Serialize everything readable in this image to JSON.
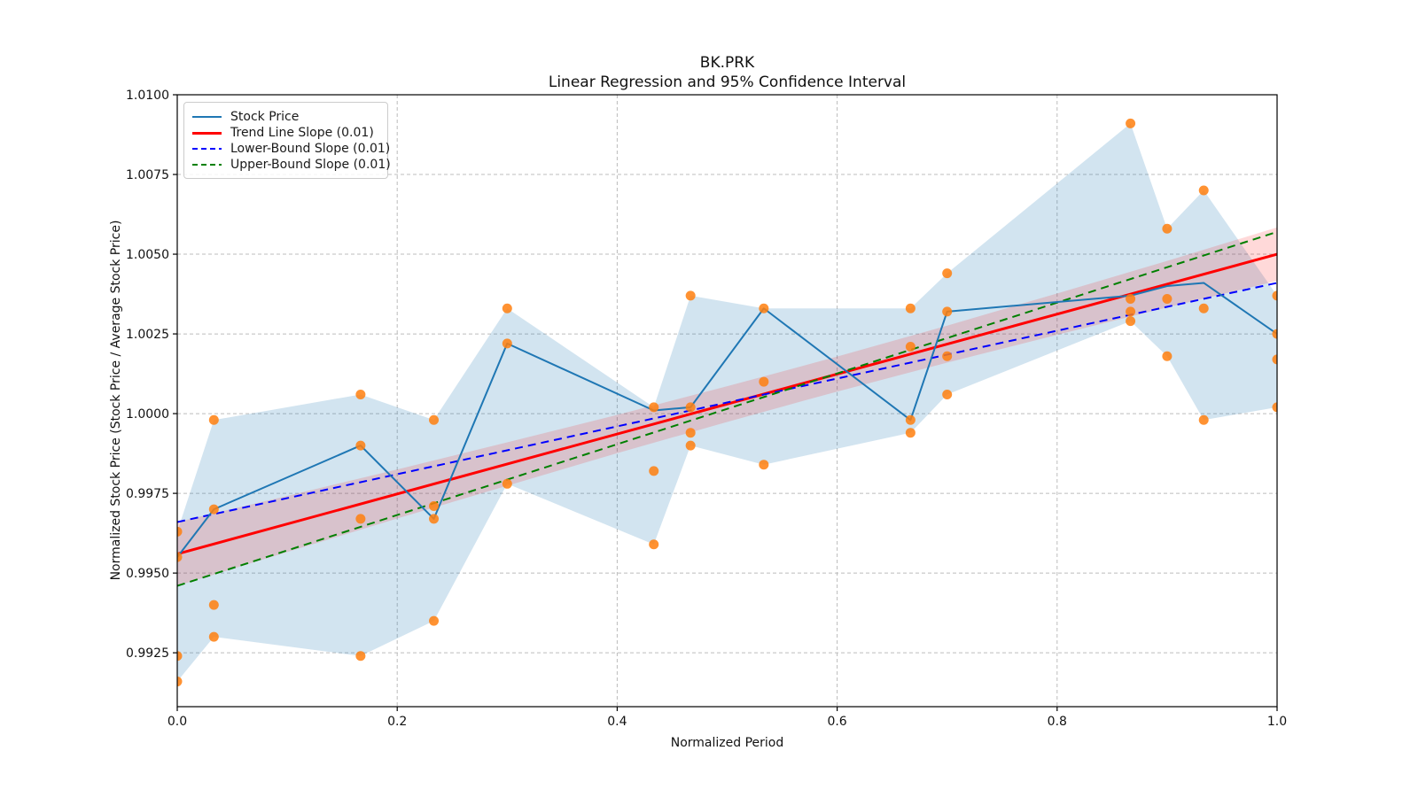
{
  "chart_data": {
    "type": "line",
    "title": "BK.PRK",
    "subtitle": "Linear Regression and 95% Confidence Interval",
    "xlabel": "Normalized Period",
    "ylabel": "Normalized Stock Price (Stock Price / Average Stock Price)",
    "xlim": [
      0.0,
      1.0
    ],
    "ylim": [
      0.99081,
      1.01
    ],
    "grid": true,
    "xticks": {
      "values": [
        0.0,
        0.2,
        0.4,
        0.6,
        0.8,
        1.0
      ],
      "labels": [
        "0.0",
        "0.2",
        "0.4",
        "0.6",
        "0.8",
        "1.0"
      ]
    },
    "yticks": {
      "values": [
        1.01,
        1.0075,
        1.005,
        1.0025,
        1.0,
        0.9975,
        0.995,
        0.9925
      ],
      "labels": [
        "1.0100",
        "1.0075",
        "1.0050",
        "1.0025",
        "1.0000",
        "0.9975",
        "0.9950",
        "0.9925"
      ]
    },
    "legend": {
      "position": "upper left",
      "items": [
        {
          "label": "Stock Price",
          "color": "#1f77b4",
          "style": "solid",
          "width": 2
        },
        {
          "label": "Trend Line Slope (0.01)",
          "color": "#ff0000",
          "style": "solid",
          "width": 3
        },
        {
          "label": "Lower-Bound Slope (0.01)",
          "color": "#0000ff",
          "style": "dashed",
          "width": 2
        },
        {
          "label": "Upper-Bound Slope (0.01)",
          "color": "#008000",
          "style": "dashed",
          "width": 2
        }
      ]
    },
    "x": [
      0.0,
      0.0333,
      0.1667,
      0.2333,
      0.3,
      0.4333,
      0.4667,
      0.5333,
      0.6667,
      0.7,
      0.8667,
      0.9,
      0.9333,
      1.0
    ],
    "series": [
      {
        "name": "Stock Price",
        "color": "#1f77b4",
        "style": "solid",
        "width": 2,
        "values": [
          0.9955,
          0.997,
          0.999,
          0.9967,
          1.0022,
          1.0001,
          1.0002,
          1.0033,
          0.9998,
          1.0032,
          1.0037,
          1.004,
          1.0041,
          1.0025
        ]
      }
    ],
    "envelope_band": {
      "name": "min-max envelope",
      "fill": "rgba(31,119,180,0.20)",
      "upper": [
        0.9963,
        0.9998,
        1.0006,
        0.9998,
        1.0033,
        1.0002,
        1.0037,
        1.0033,
        1.0033,
        1.0044,
        1.0091,
        1.0058,
        1.007,
        1.0037
      ],
      "lower": [
        0.9916,
        0.993,
        0.9924,
        0.9935,
        0.9978,
        0.9959,
        0.999,
        0.9984,
        0.9994,
        1.0006,
        1.0029,
        1.0018,
        0.9998,
        1.0002
      ]
    },
    "scatter": {
      "name": "stock price observations",
      "color": "#ff7f0e",
      "xs": [
        0.0,
        0.0,
        0.0,
        0.0,
        0.0333,
        0.0333,
        0.0333,
        0.0333,
        0.1667,
        0.1667,
        0.1667,
        0.1667,
        0.2333,
        0.2333,
        0.2333,
        0.2333,
        0.3,
        0.3,
        0.3,
        0.4333,
        0.4333,
        0.4333,
        0.4667,
        0.4667,
        0.4667,
        0.4667,
        0.5333,
        0.5333,
        0.5333,
        0.6667,
        0.6667,
        0.6667,
        0.6667,
        0.7,
        0.7,
        0.7,
        0.7,
        0.8667,
        0.8667,
        0.8667,
        0.8667,
        0.9,
        0.9,
        0.9,
        0.9333,
        0.9333,
        0.9333,
        1.0,
        1.0,
        1.0,
        1.0
      ],
      "ys": [
        0.9963,
        0.9955,
        0.9924,
        0.9916,
        0.9998,
        0.997,
        0.994,
        0.993,
        1.0006,
        0.999,
        0.9967,
        0.9924,
        0.9998,
        0.9971,
        0.9967,
        0.9935,
        1.0033,
        1.0022,
        0.9978,
        1.0002,
        0.9982,
        0.9959,
        1.0037,
        1.0002,
        0.9994,
        0.999,
        1.0033,
        1.001,
        0.9984,
        1.0033,
        1.0021,
        0.9998,
        0.9994,
        1.0044,
        1.0032,
        1.0018,
        1.0006,
        1.0091,
        1.0036,
        1.0032,
        1.0029,
        1.0058,
        1.0036,
        1.0018,
        1.007,
        1.0033,
        0.9998,
        1.0037,
        1.0025,
        1.0017,
        1.0002
      ]
    },
    "trend_lines": [
      {
        "name": "Trend Line Slope (0.01)",
        "y0": 0.9956,
        "y1": 1.005,
        "color": "#ff0000",
        "style": "solid",
        "width": 3
      },
      {
        "name": "Lower-Bound Slope (0.01)",
        "y0": 0.9966,
        "y1": 1.0041,
        "color": "#0000ff",
        "style": "dashed",
        "width": 2
      },
      {
        "name": "Upper-Bound Slope (0.01)",
        "y0": 0.9946,
        "y1": 1.0057,
        "color": "#008000",
        "style": "dashed",
        "width": 2
      }
    ],
    "confidence_band": {
      "name": "95% confidence band",
      "fill": "rgba(255,0,0,0.15)",
      "t": [
        0.0,
        0.1,
        0.2,
        0.3,
        0.4,
        0.5,
        0.57,
        0.6,
        0.7,
        0.8,
        0.9,
        1.0
      ],
      "halfwidth": [
        0.001,
        0.00088,
        0.00077,
        0.00068,
        0.0006,
        0.00056,
        0.00055,
        0.00055,
        0.00058,
        0.00065,
        0.00073,
        0.00084
      ]
    },
    "colors": {
      "stock_line": "#1f77b4",
      "scatter": "#ff7f0e",
      "trend": "#ff0000",
      "lower_bound": "#0000ff",
      "upper_bound": "#008000",
      "envelope_fill": "rgba(31,119,180,0.20)",
      "confidence_fill": "rgba(255,0,0,0.15)",
      "grid": "#bcbcbc",
      "spine": "#000000"
    }
  }
}
